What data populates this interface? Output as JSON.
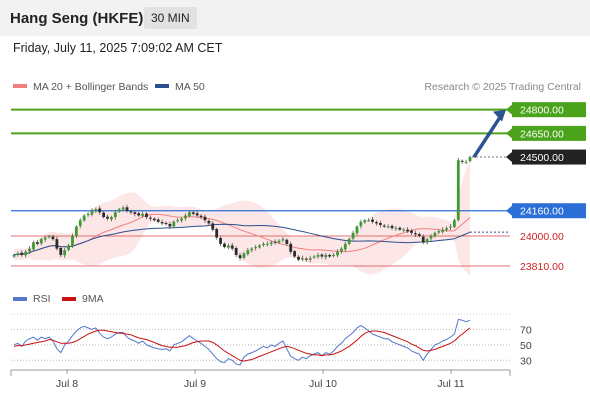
{
  "header": {
    "title": "Hang Seng (HKFE)",
    "interval": "30 MIN"
  },
  "datetime": "Friday, July 11, 2025 7:09:02 AM CET",
  "legend": {
    "ma20": {
      "label": "MA 20 + Bollinger Bands",
      "color": "#f08080"
    },
    "ma50": {
      "label": "MA 50",
      "color": "#2a4f8f"
    }
  },
  "credit": "Research © 2025 Trading Central",
  "rsi_legend": {
    "rsi": {
      "label": "RSI",
      "color": "#5577cc"
    },
    "ma9": {
      "label": "9MA",
      "color": "#cc1111"
    }
  },
  "chart_data": {
    "type": "candlestick",
    "price_axis": {
      "min": 23720,
      "max": 24860
    },
    "x_labels": [
      "Jul 8",
      "Jul 9",
      "Jul 10",
      "Jul 11"
    ],
    "levels": [
      {
        "value": 24800,
        "label": "24800.00",
        "kind": "resistance",
        "color": "#4aa31a"
      },
      {
        "value": 24650,
        "label": "24650.00",
        "kind": "resistance",
        "color": "#4aa31a"
      },
      {
        "value": 24500,
        "label": "24500.00",
        "kind": "last",
        "color": "#222222"
      },
      {
        "value": 24160,
        "label": "24160.00",
        "kind": "pivot",
        "color": "#2b6fd6"
      },
      {
        "value": 24000,
        "label": "24000.00",
        "kind": "support",
        "color": "#e07070"
      },
      {
        "value": 23810,
        "label": "23810.00",
        "kind": "support",
        "color": "#e07070"
      }
    ],
    "arrow": {
      "from": 24500,
      "to": 24800,
      "direction": "up"
    },
    "closes": [
      23880,
      23890,
      23880,
      23900,
      23920,
      23960,
      23950,
      23980,
      23990,
      24000,
      23980,
      23920,
      23880,
      23910,
      23940,
      24000,
      24060,
      24100,
      24130,
      24140,
      24160,
      24170,
      24150,
      24120,
      24110,
      24120,
      24150,
      24170,
      24180,
      24160,
      24150,
      24140,
      24130,
      24140,
      24120,
      24110,
      24100,
      24090,
      24080,
      24080,
      24060,
      24090,
      24100,
      24110,
      24130,
      24150,
      24140,
      24130,
      24120,
      24100,
      24080,
      24040,
      23990,
      23950,
      23930,
      23940,
      23920,
      23880,
      23860,
      23890,
      23910,
      23920,
      23930,
      23940,
      23950,
      23950,
      23960,
      23960,
      23970,
      23980,
      23950,
      23900,
      23870,
      23850,
      23860,
      23850,
      23860,
      23870,
      23880,
      23870,
      23880,
      23870,
      23880,
      23900,
      23920,
      23950,
      23980,
      24020,
      24060,
      24090,
      24100,
      24100,
      24090,
      24080,
      24070,
      24060,
      24060,
      24050,
      24050,
      24040,
      24040,
      24030,
      24020,
      24010,
      24000,
      23960,
      23980,
      24000,
      24020,
      24030,
      24040,
      24050,
      24060,
      24100,
      24480,
      24470,
      24470,
      24500
    ],
    "rsi": {
      "levels": [
        70,
        50,
        30
      ],
      "range": [
        20,
        90
      ],
      "values": [
        50,
        52,
        48,
        55,
        58,
        60,
        56,
        60,
        58,
        60,
        55,
        45,
        40,
        50,
        55,
        62,
        68,
        72,
        74,
        72,
        70,
        72,
        65,
        60,
        58,
        60,
        64,
        66,
        66,
        60,
        57,
        55,
        52,
        55,
        50,
        48,
        46,
        45,
        44,
        45,
        42,
        50,
        52,
        54,
        58,
        62,
        58,
        55,
        52,
        48,
        44,
        38,
        32,
        28,
        27,
        32,
        30,
        25,
        24,
        34,
        38,
        40,
        42,
        45,
        48,
        46,
        50,
        48,
        52,
        55,
        45,
        35,
        32,
        30,
        34,
        32,
        36,
        38,
        40,
        36,
        40,
        38,
        42,
        48,
        52,
        58,
        62,
        66,
        72,
        75,
        72,
        68,
        64,
        62,
        60,
        58,
        58,
        54,
        52,
        50,
        48,
        46,
        42,
        40,
        38,
        30,
        38,
        44,
        50,
        52,
        55,
        57,
        60,
        64,
        83,
        82,
        80,
        82
      ],
      "ma9_values": [
        48,
        49,
        49,
        50,
        51,
        52,
        53,
        54,
        55,
        57,
        56,
        54,
        52,
        52,
        52,
        53,
        55,
        58,
        61,
        64,
        66,
        68,
        69,
        69,
        68,
        67,
        66,
        65,
        65,
        64,
        63,
        61,
        59,
        58,
        57,
        55,
        53,
        51,
        49,
        48,
        47,
        47,
        47,
        48,
        49,
        51,
        53,
        54,
        55,
        55,
        55,
        53,
        50,
        46,
        42,
        39,
        36,
        33,
        30,
        29,
        30,
        31,
        33,
        35,
        37,
        39,
        41,
        43,
        45,
        47,
        48,
        47,
        45,
        43,
        41,
        39,
        38,
        37,
        37,
        36,
        37,
        37,
        38,
        40,
        42,
        45,
        48,
        52,
        56,
        61,
        65,
        67,
        68,
        68,
        67,
        66,
        64,
        62,
        60,
        58,
        56,
        54,
        51,
        49,
        46,
        43,
        42,
        43,
        44,
        46,
        48,
        50,
        52,
        55,
        60,
        64,
        68,
        72
      ]
    }
  }
}
